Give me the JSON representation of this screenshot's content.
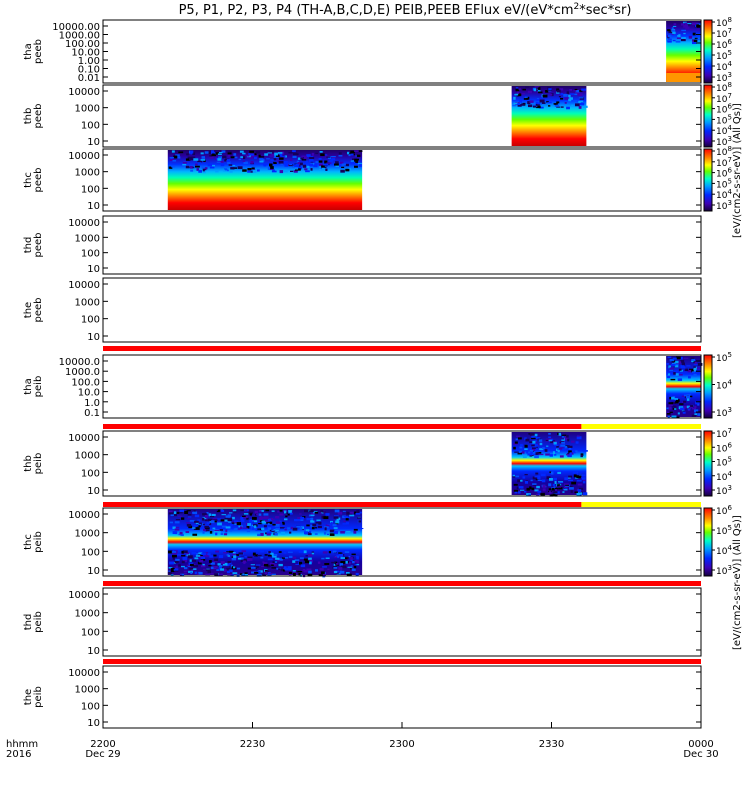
{
  "chart_data": {
    "type": "heatmap",
    "title_parts": {
      "prefix": "P5, P1, P2, P3, P4 (TH-A,B,C,D,E) PEIB,PEEB EFlux eV/(eV*cm",
      "sup": "2",
      "suffix": "*sec*sr)"
    },
    "x_axis": {
      "var_labels": [
        "hhmm",
        "2016"
      ],
      "ticks": [
        {
          "main": "2200",
          "sub": "Dec 29"
        },
        {
          "main": "2230",
          "sub": ""
        },
        {
          "main": "2300",
          "sub": ""
        },
        {
          "main": "2330",
          "sub": ""
        },
        {
          "main": "0000",
          "sub": "Dec 30"
        }
      ],
      "range_minutes": [
        0,
        120
      ]
    },
    "colorbar_labels": {
      "electrons": "[eV/(cm2-s-sr-eV)] (All Qs)]",
      "ions": "[eV/(cm2-s-sr-eV)] (All Qs)]"
    },
    "panels": [
      {
        "probe": "tha",
        "species": "peeb",
        "yticks": [
          "10000.00",
          "1000.00",
          "100.00",
          "10.00",
          "1.00",
          "0.10",
          "0.01"
        ],
        "data_minutes": [
          113,
          120
        ],
        "orange_bottom": true,
        "status_bar": [],
        "colorbar": [
          "10^8",
          "10^7",
          "10^6",
          "10^5",
          "10^4",
          "10^3"
        ]
      },
      {
        "probe": "thb",
        "species": "peeb",
        "yticks": [
          "10000",
          "1000",
          "100",
          "10"
        ],
        "data_minutes": [
          82,
          97
        ],
        "orange_bottom": false,
        "status_bar": [],
        "colorbar": [
          "10^8",
          "10^7",
          "10^6",
          "10^5",
          "10^4",
          "10^3"
        ]
      },
      {
        "probe": "thc",
        "species": "peeb",
        "yticks": [
          "10000",
          "1000",
          "100",
          "10"
        ],
        "data_minutes": [
          13,
          52
        ],
        "orange_bottom": false,
        "status_bar": [],
        "colorbar": [
          "10^8",
          "10^7",
          "10^6",
          "10^5",
          "10^4",
          "10^3"
        ]
      },
      {
        "probe": "thd",
        "species": "peeb",
        "yticks": [
          "10000",
          "1000",
          "100",
          "10"
        ],
        "data_minutes": null,
        "orange_bottom": false,
        "status_bar": [],
        "colorbar": []
      },
      {
        "probe": "the",
        "species": "peeb",
        "yticks": [
          "10000",
          "1000",
          "100",
          "10"
        ],
        "data_minutes": null,
        "orange_bottom": false,
        "status_bar": [],
        "colorbar": []
      },
      {
        "probe": "tha",
        "species": "peib",
        "yticks": [
          "10000.0",
          "1000.0",
          "100.0",
          "10.0",
          "1.0",
          "0.1"
        ],
        "data_minutes": [
          113,
          120
        ],
        "orange_bottom": false,
        "status_bar": [
          {
            "from": 0,
            "to": 120,
            "color": "#ff0000"
          }
        ],
        "colorbar": [
          "10^5",
          "10^4",
          "10^3"
        ]
      },
      {
        "probe": "thb",
        "species": "peib",
        "yticks": [
          "10000",
          "1000",
          "100",
          "10"
        ],
        "data_minutes": [
          82,
          97
        ],
        "orange_bottom": false,
        "status_bar": [
          {
            "from": 0,
            "to": 96,
            "color": "#ff0000"
          },
          {
            "from": 96,
            "to": 120,
            "color": "#ffff00"
          }
        ],
        "colorbar": [
          "10^7",
          "10^6",
          "10^5",
          "10^4",
          "10^3"
        ]
      },
      {
        "probe": "thc",
        "species": "peib",
        "yticks": [
          "10000",
          "1000",
          "100",
          "10"
        ],
        "data_minutes": [
          13,
          52
        ],
        "orange_bottom": false,
        "status_bar": [
          {
            "from": 0,
            "to": 96,
            "color": "#ff0000"
          },
          {
            "from": 96,
            "to": 120,
            "color": "#ffff00"
          }
        ],
        "colorbar": [
          "10^6",
          "10^5",
          "10^4",
          "10^3"
        ]
      },
      {
        "probe": "thd",
        "species": "peib",
        "yticks": [
          "10000",
          "1000",
          "100",
          "10"
        ],
        "data_minutes": null,
        "orange_bottom": false,
        "status_bar": [
          {
            "from": 0,
            "to": 120,
            "color": "#ff0000"
          }
        ],
        "colorbar": []
      },
      {
        "probe": "the",
        "species": "peib",
        "yticks": [
          "10000",
          "1000",
          "100",
          "10"
        ],
        "data_minutes": null,
        "orange_bottom": false,
        "status_bar": [
          {
            "from": 0,
            "to": 120,
            "color": "#ff0000"
          }
        ],
        "colorbar": []
      }
    ]
  }
}
